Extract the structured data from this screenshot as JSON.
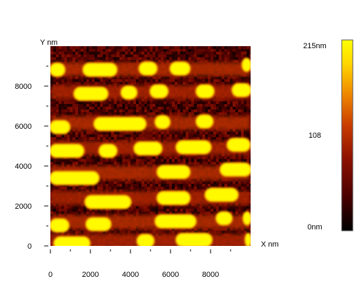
{
  "chart_data": {
    "type": "heatmap",
    "title": "",
    "xlabel": "X nm",
    "ylabel": "Y nm",
    "xlim": [
      0,
      10000
    ],
    "ylim": [
      0,
      10000
    ],
    "x_ticks": [
      {
        "value": 0,
        "label": "0"
      },
      {
        "value": 2000,
        "label": "2000"
      },
      {
        "value": 4000,
        "label": "4000"
      },
      {
        "value": 6000,
        "label": "6000"
      },
      {
        "value": 8000,
        "label": "8000"
      }
    ],
    "y_ticks": [
      {
        "value": 0,
        "label": "0"
      },
      {
        "value": 2000,
        "label": "2000"
      },
      {
        "value": 4000,
        "label": "4000"
      },
      {
        "value": 6000,
        "label": "6000"
      },
      {
        "value": 8000,
        "label": "8000"
      }
    ],
    "colorbar": {
      "min": 0,
      "max": 215,
      "unit": "nm",
      "labels": [
        {
          "value": 215,
          "label": "215nm"
        },
        {
          "value": 108,
          "label": "108"
        },
        {
          "value": 0,
          "label": "0nm"
        }
      ],
      "colormap": [
        "#000000",
        "#4a0000",
        "#8e1200",
        "#c83c00",
        "#f08a00",
        "#ffd800",
        "#ffff00"
      ]
    },
    "features": {
      "description_units": "x/y ranges in nm, height in nm",
      "background_height": 50,
      "islands": [
        {
          "row": 1,
          "x0": 0,
          "x1": 700,
          "y": 8820,
          "h": 210
        },
        {
          "row": 1,
          "x0": 1650,
          "x1": 3300,
          "y": 8820,
          "h": 210
        },
        {
          "row": 1,
          "x0": 4450,
          "x1": 5300,
          "y": 8880,
          "h": 210
        },
        {
          "row": 1,
          "x0": 6000,
          "x1": 6950,
          "y": 8880,
          "h": 210
        },
        {
          "row": 1,
          "x0": 9600,
          "x1": 10000,
          "y": 9060,
          "h": 210
        },
        {
          "row": 2,
          "x0": 1200,
          "x1": 2850,
          "y": 7620,
          "h": 210
        },
        {
          "row": 2,
          "x0": 3550,
          "x1": 4300,
          "y": 7680,
          "h": 210
        },
        {
          "row": 2,
          "x0": 5000,
          "x1": 5850,
          "y": 7740,
          "h": 210
        },
        {
          "row": 2,
          "x0": 7300,
          "x1": 8150,
          "y": 7740,
          "h": 210
        },
        {
          "row": 2,
          "x0": 9100,
          "x1": 10000,
          "y": 7800,
          "h": 210
        },
        {
          "row": 3,
          "x0": 0,
          "x1": 950,
          "y": 5950,
          "h": 210
        },
        {
          "row": 3,
          "x0": 2200,
          "x1": 4750,
          "y": 6110,
          "h": 210
        },
        {
          "row": 3,
          "x0": 5250,
          "x1": 5950,
          "y": 6200,
          "h": 210
        },
        {
          "row": 3,
          "x0": 7300,
          "x1": 8100,
          "y": 6230,
          "h": 210
        },
        {
          "row": 4,
          "x0": 0,
          "x1": 1650,
          "y": 4760,
          "h": 210
        },
        {
          "row": 4,
          "x0": 2450,
          "x1": 3300,
          "y": 4760,
          "h": 210
        },
        {
          "row": 4,
          "x0": 4200,
          "x1": 5550,
          "y": 4880,
          "h": 210
        },
        {
          "row": 4,
          "x0": 6300,
          "x1": 8000,
          "y": 4940,
          "h": 210
        },
        {
          "row": 4,
          "x0": 8850,
          "x1": 9950,
          "y": 5060,
          "h": 210
        },
        {
          "row": 5,
          "x0": 0,
          "x1": 2400,
          "y": 3400,
          "h": 210
        },
        {
          "row": 5,
          "x0": 5350,
          "x1": 6950,
          "y": 3700,
          "h": 210
        },
        {
          "row": 5,
          "x0": 8500,
          "x1": 10000,
          "y": 3820,
          "h": 210
        },
        {
          "row": 6,
          "x0": 1750,
          "x1": 4000,
          "y": 2200,
          "h": 210
        },
        {
          "row": 6,
          "x0": 5350,
          "x1": 6950,
          "y": 2400,
          "h": 210
        },
        {
          "row": 6,
          "x0": 7750,
          "x1": 9350,
          "y": 2560,
          "h": 210
        },
        {
          "row": 7,
          "x0": 0,
          "x1": 900,
          "y": 1030,
          "h": 210
        },
        {
          "row": 7,
          "x0": 1800,
          "x1": 3000,
          "y": 1090,
          "h": 210
        },
        {
          "row": 7,
          "x0": 5250,
          "x1": 7250,
          "y": 1230,
          "h": 210
        },
        {
          "row": 7,
          "x0": 8300,
          "x1": 9050,
          "y": 1380,
          "h": 210
        },
        {
          "row": 7,
          "x0": 9650,
          "x1": 10000,
          "y": 1380,
          "h": 210
        },
        {
          "row": 8,
          "x0": 200,
          "x1": 1950,
          "y": 130,
          "h": 210
        },
        {
          "row": 8,
          "x0": 4350,
          "x1": 5150,
          "y": 250,
          "h": 210
        },
        {
          "row": 8,
          "x0": 6300,
          "x1": 8050,
          "y": 300,
          "h": 210
        },
        {
          "row": 8,
          "x0": 9750,
          "x1": 10000,
          "y": 300,
          "h": 210
        }
      ],
      "row_bands": [
        {
          "y": 8850,
          "h": 95
        },
        {
          "y": 7700,
          "h": 90
        },
        {
          "y": 6150,
          "h": 95
        },
        {
          "y": 4900,
          "h": 90
        },
        {
          "y": 3650,
          "h": 95
        },
        {
          "y": 2400,
          "h": 90
        },
        {
          "y": 1200,
          "h": 95
        },
        {
          "y": 250,
          "h": 90
        }
      ]
    }
  }
}
